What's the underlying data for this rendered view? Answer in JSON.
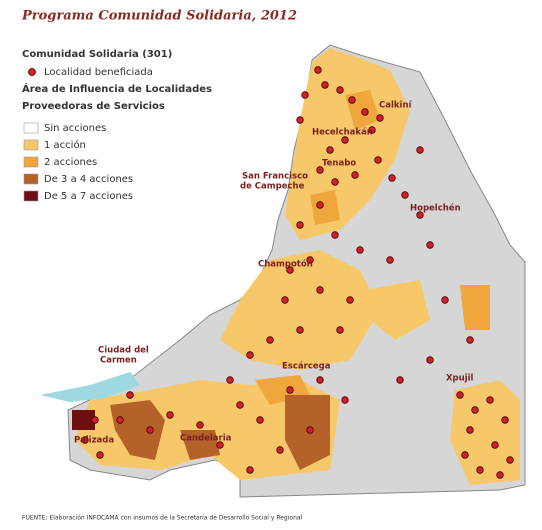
{
  "title": "Programa Comunidad Solidaria, 2012",
  "legend": {
    "heading": "Comunidad Solidaria (301)",
    "point_label": "Localidad beneficiada",
    "area_heading_1": "Área de Influencia de Localidades",
    "area_heading_2": "Proveedoras de Servicios",
    "items": [
      {
        "label": "Sin acciones",
        "color": "#ffffff"
      },
      {
        "label": "1 acción",
        "color": "#f6c86a"
      },
      {
        "label": "2 acciones",
        "color": "#f0a63c"
      },
      {
        "label": "De 3 a 4 acciones",
        "color": "#b5622a"
      },
      {
        "label": "De 5 a 7 acciones",
        "color": "#6e1010"
      }
    ]
  },
  "places": [
    "Calkiní",
    "Hecelchakán",
    "Tenabo",
    "San Francisco",
    "de Campeche",
    "Hopelchén",
    "Champotón",
    "Ciudad del",
    "Carmen",
    "Escárcega",
    "Xpujil",
    "Palizada",
    "Candelaria"
  ],
  "source": "FUENTE: Elaboración INFOCAMA con insumos de la Secretaría de Desarrollo Social y Regional"
}
